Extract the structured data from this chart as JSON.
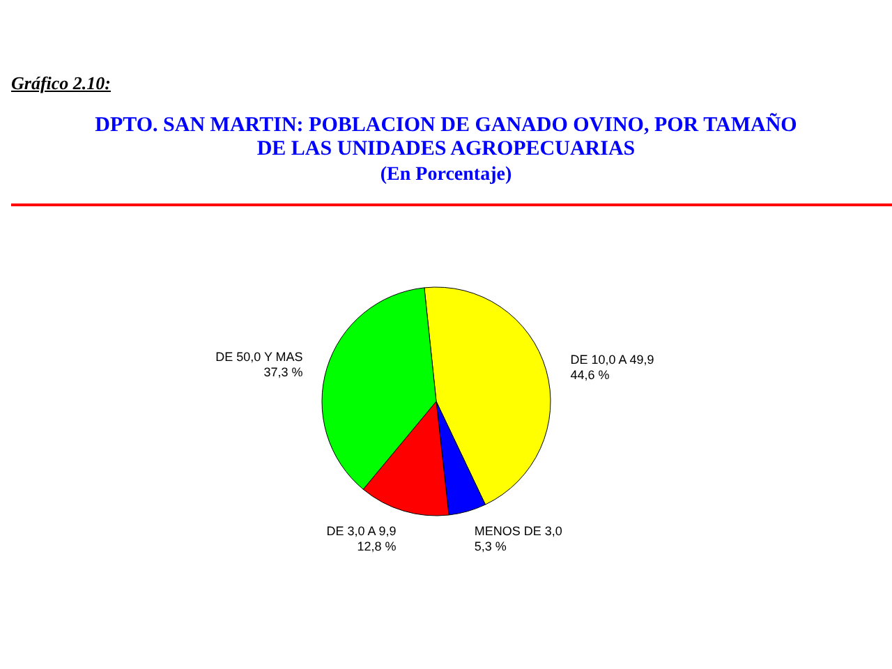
{
  "chart_data": {
    "type": "pie",
    "title": "DPTO. SAN MARTIN: POBLACION DE GANADO OVINO, POR TAMAÑO DE LAS UNIDADES AGROPECUARIAS",
    "subtitle": "(En Porcentaje)",
    "annotations": [
      "Gráfico 2.10:"
    ],
    "categories": [
      "DE 10,0 A 49,9",
      "MENOS DE 3,0",
      "DE 3,0 A 9,9",
      "DE 50,0 Y MAS"
    ],
    "values": [
      44.6,
      5.3,
      12.8,
      37.3
    ],
    "value_labels": [
      "44,6 %",
      "5,3 %",
      "12,8 %",
      "37,3 %"
    ],
    "colors": [
      "#ffff00",
      "#0000ff",
      "#ff0000",
      "#00ff00"
    ]
  }
}
